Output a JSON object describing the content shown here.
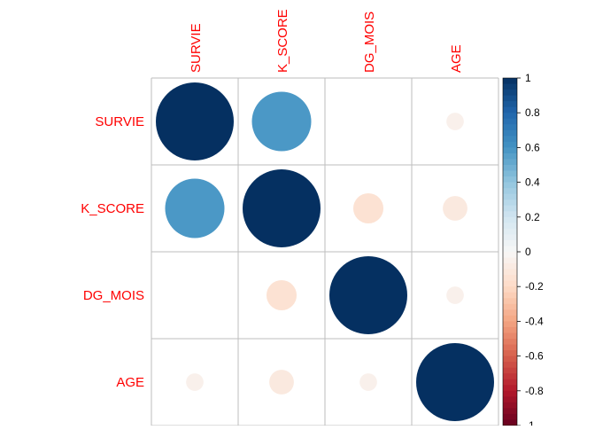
{
  "chart_data": {
    "type": "heatmap",
    "variables": [
      "SURVIE",
      "K_SCORE",
      "DG_MOIS",
      "AGE"
    ],
    "matrix": [
      [
        1.0,
        0.58,
        0.0,
        -0.05
      ],
      [
        0.58,
        1.0,
        -0.15,
        -0.1
      ],
      [
        0.0,
        -0.15,
        1.0,
        -0.05
      ],
      [
        -0.05,
        -0.1,
        -0.05,
        1.0
      ]
    ],
    "colorbar": {
      "range": [
        -1,
        1
      ],
      "ticks": [
        "-1",
        "-0.8",
        "-0.6",
        "-0.4",
        "-0.2",
        "0",
        "0.2",
        "0.4",
        "0.6",
        "0.8",
        "1"
      ]
    },
    "colors": {
      "label": "#ff0000",
      "grid": "#bebebe",
      "neg_strong": "#67001f",
      "neutral": "#f7f7f7",
      "pos_strong": "#053061"
    }
  }
}
